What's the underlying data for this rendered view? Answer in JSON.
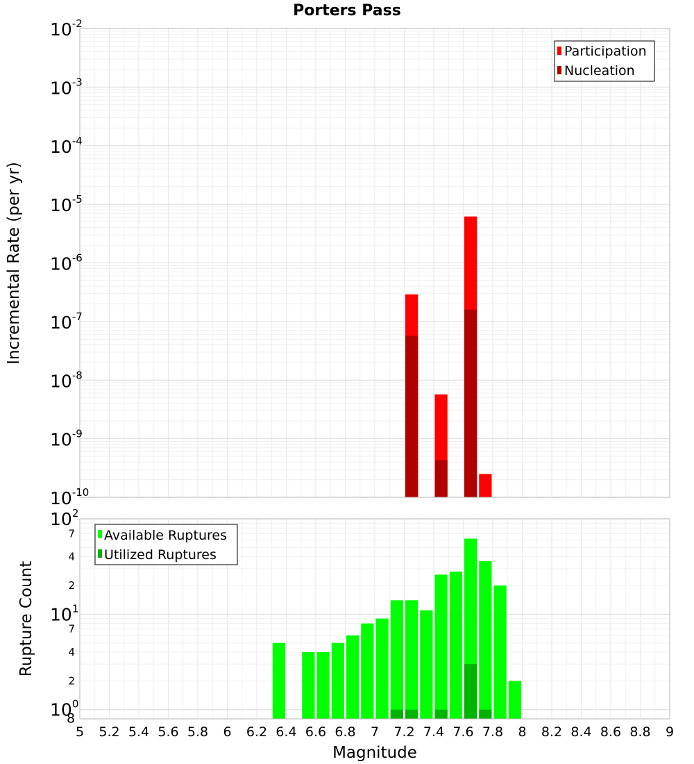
{
  "chart_data": [
    {
      "type": "bar",
      "title": "Porters Pass",
      "xlabel": "",
      "ylabel": "Incremental Rate (per yr)",
      "yscale": "log",
      "ylim": [
        1e-10,
        0.01
      ],
      "xlim": [
        5,
        9
      ],
      "bar_width": 0.1,
      "grid": true,
      "legend_position": "top-right",
      "series": [
        {
          "name": "Participation",
          "color": "#ff0000",
          "x": [
            7.25,
            7.45,
            7.65,
            7.75
          ],
          "values": [
            2.9e-07,
            5.7e-09,
            6.2e-06,
            2.5e-10
          ]
        },
        {
          "name": "Nucleation",
          "color": "#b00000",
          "x": [
            7.25,
            7.45,
            7.65
          ],
          "values": [
            5.7e-08,
            4.3e-10,
            1.6e-07
          ]
        }
      ],
      "y_tick_labels": [
        {
          "base": "10",
          "exp": "-10"
        },
        {
          "base": "10",
          "exp": "-9"
        },
        {
          "base": "10",
          "exp": "-8"
        },
        {
          "base": "10",
          "exp": "-7"
        },
        {
          "base": "10",
          "exp": "-6"
        },
        {
          "base": "10",
          "exp": "-5"
        },
        {
          "base": "10",
          "exp": "-4"
        },
        {
          "base": "10",
          "exp": "-3"
        },
        {
          "base": "10",
          "exp": "-2"
        }
      ]
    },
    {
      "type": "bar",
      "title": "",
      "xlabel": "Magnitude",
      "ylabel": "Rupture Count",
      "yscale": "log",
      "ylim": [
        0.8,
        100
      ],
      "xlim": [
        5,
        9
      ],
      "bar_width": 0.1,
      "grid": true,
      "legend_position": "top-left",
      "series": [
        {
          "name": "Available Ruptures",
          "color": "#00ff00",
          "x": [
            6.35,
            6.55,
            6.65,
            6.75,
            6.85,
            6.95,
            7.05,
            7.15,
            7.25,
            7.35,
            7.45,
            7.55,
            7.65,
            7.75,
            7.85,
            7.95
          ],
          "values": [
            5,
            4,
            4,
            5,
            6,
            8,
            9,
            14,
            14,
            11,
            26,
            28,
            62,
            36,
            20,
            2
          ]
        },
        {
          "name": "Utilized Ruptures",
          "color": "#00b400",
          "x": [
            7.15,
            7.25,
            7.45,
            7.65,
            7.75
          ],
          "values": [
            1,
            1,
            1,
            3,
            1
          ]
        }
      ],
      "y_tick_labels": [
        {
          "base": "10",
          "exp": "0",
          "sub": "8"
        },
        {
          "base": "10",
          "exp": "1"
        },
        {
          "base": "10",
          "exp": "2"
        }
      ],
      "y_minor_labels": [
        "2",
        "4",
        "7",
        "2",
        "4",
        "7"
      ],
      "x_tick_labels": [
        "5",
        "5.2",
        "5.4",
        "5.6",
        "5.8",
        "6",
        "6.2",
        "6.4",
        "6.6",
        "6.8",
        "7",
        "7.2",
        "7.4",
        "7.6",
        "7.8",
        "8",
        "8.2",
        "8.4",
        "8.6",
        "8.8",
        "9"
      ]
    }
  ]
}
